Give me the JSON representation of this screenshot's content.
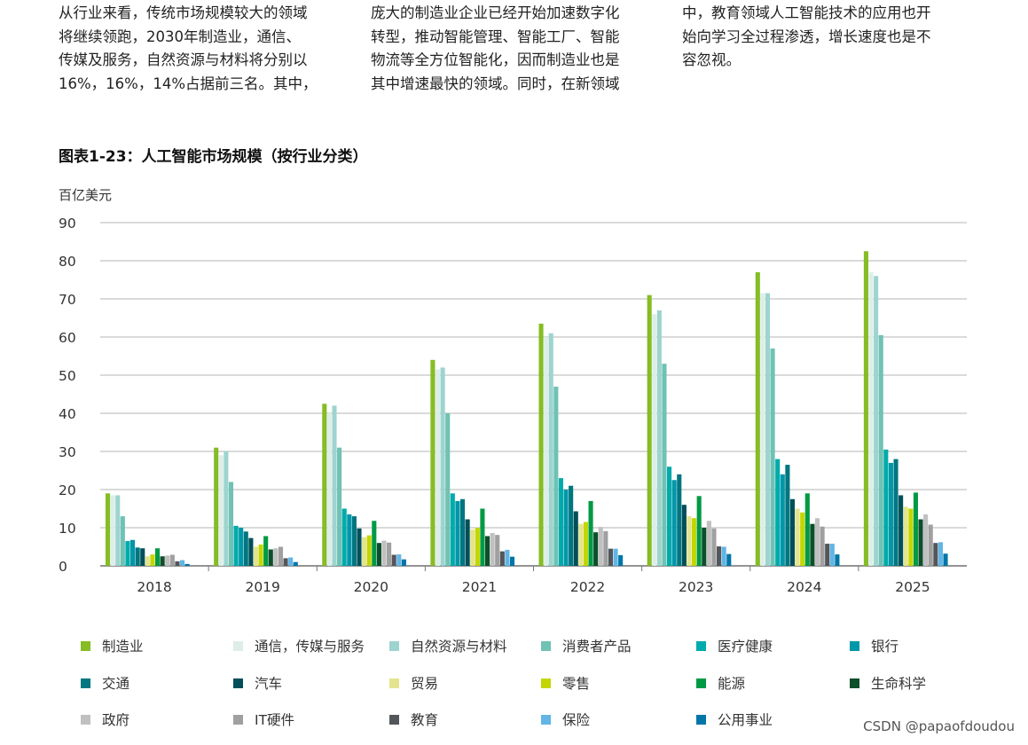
{
  "paragraphs": [
    [
      "从行业来看，传统市场规模较大的领域",
      "将继续领跑，2030年制造业，通信、",
      "传媒及服务，自然资源与材料将分别以",
      "16%，16%，14%占据前三名。其中，"
    ],
    [
      "庞大的制造业企业已经开始加速数字化",
      "转型，推动智能管理、智能工厂、智能",
      "物流等全方位智能化，因而制造业也是",
      "其中增速最快的领域。同时，在新领域"
    ],
    [
      "中，教育领域人工智能技术的应用也开",
      "始向学习全过程渗透，增长速度也是不",
      "容忽视。"
    ]
  ],
  "watermark": "CSDN @papaofdoudou",
  "chart_data": {
    "type": "bar",
    "title": "图表1-23：人工智能市场规模（按行业分类）",
    "ylabel": "百亿美元",
    "xlabel": "",
    "ylim": [
      0,
      90
    ],
    "yticks": [
      0,
      10,
      20,
      30,
      40,
      50,
      60,
      70,
      80,
      90
    ],
    "grid": true,
    "legend_position": "bottom",
    "categories": [
      "2018",
      "2019",
      "2020",
      "2021",
      "2022",
      "2023",
      "2024",
      "2025"
    ],
    "series": [
      {
        "name": "制造业",
        "color": "#86bc25",
        "values": [
          19,
          31,
          42.5,
          54,
          63.5,
          71,
          77,
          82.5
        ]
      },
      {
        "name": "通信，传媒与服务",
        "color": "#ddeee8",
        "values": [
          18.5,
          29,
          40,
          51.5,
          60,
          66,
          71.5,
          77
        ]
      },
      {
        "name": "自然资源与材料",
        "color": "#9dd4cf",
        "values": [
          18.5,
          30,
          42,
          52,
          61,
          67,
          71.5,
          76
        ]
      },
      {
        "name": "消费者产品",
        "color": "#6fc2b4",
        "values": [
          13,
          22,
          31,
          40,
          47,
          53,
          57,
          60.5
        ]
      },
      {
        "name": "医疗健康",
        "color": "#00abab",
        "values": [
          6.5,
          10.5,
          15,
          19,
          23,
          26,
          28,
          30.5
        ]
      },
      {
        "name": "银行",
        "color": "#0097a9",
        "values": [
          6.8,
          10,
          13.5,
          17,
          20,
          22.5,
          24,
          27
        ]
      },
      {
        "name": "交通",
        "color": "#007680",
        "values": [
          4.8,
          9,
          13,
          17.5,
          21,
          24,
          26.5,
          28
        ]
      },
      {
        "name": "汽车",
        "color": "#004f59",
        "values": [
          4.6,
          7.3,
          9.8,
          12.2,
          14.3,
          16,
          17.5,
          18.5
        ]
      },
      {
        "name": "贸易",
        "color": "#e3e48d",
        "values": [
          2.5,
          5,
          7.5,
          9.5,
          11,
          13,
          15,
          15.5
        ]
      },
      {
        "name": "零售",
        "color": "#c4d600",
        "values": [
          3,
          5.6,
          8,
          10,
          11.5,
          12.5,
          14,
          15
        ]
      },
      {
        "name": "能源",
        "color": "#009a44",
        "values": [
          4.6,
          7.8,
          11.8,
          15,
          17,
          18.3,
          19,
          19.2
        ]
      },
      {
        "name": "生命科学",
        "color": "#0d4f2b",
        "values": [
          2.5,
          4.3,
          6,
          7.8,
          8.8,
          10,
          11,
          12.2
        ]
      },
      {
        "name": "政府",
        "color": "#c0c0c0",
        "values": [
          2.7,
          4.6,
          6.6,
          8.6,
          10.2,
          11.8,
          12.5,
          13.5
        ]
      },
      {
        "name": "IT硬件",
        "color": "#a0a0a0",
        "values": [
          2.9,
          5,
          6.1,
          8.1,
          9.1,
          9.8,
          10.3,
          10.8
        ]
      },
      {
        "name": "教育",
        "color": "#53565a",
        "values": [
          1.2,
          2,
          2.9,
          3.8,
          4.5,
          5.1,
          5.8,
          6
        ]
      },
      {
        "name": "保险",
        "color": "#62b5e5",
        "values": [
          1.5,
          2.2,
          3,
          4.2,
          4.5,
          5,
          5.8,
          6.2
        ]
      },
      {
        "name": "公用事业",
        "color": "#0076a8",
        "values": [
          0.5,
          1,
          1.7,
          2.4,
          2.8,
          3.1,
          3,
          3.2
        ]
      }
    ]
  }
}
